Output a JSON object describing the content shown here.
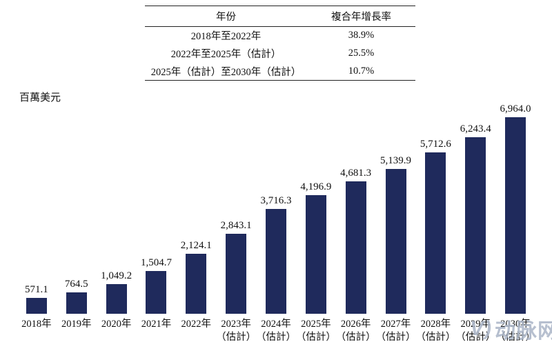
{
  "table": {
    "headers": [
      "年份",
      "複合年增長率"
    ],
    "rows": [
      {
        "period": "2018年至2022年",
        "cagr": "38.9%"
      },
      {
        "period": "2022年至2025年（估計）",
        "cagr": "25.5%"
      },
      {
        "period": "2025年（估計）至2030年（估計）",
        "cagr": "10.7%"
      }
    ]
  },
  "unit_label": "百萬美元",
  "chart_data": {
    "type": "bar",
    "title": "",
    "xlabel": "",
    "ylabel": "百萬美元",
    "ylim": [
      0,
      7000
    ],
    "grid": false,
    "legend": "none",
    "bar_color": "#1F2A5C",
    "categories": [
      "2018年",
      "2019年",
      "2020年",
      "2021年",
      "2022年",
      "2023年\n（估計）",
      "2024年\n（估計）",
      "2025年\n（估計）",
      "2026年\n（估計）",
      "2027年\n（估計）",
      "2028年\n（估計）",
      "2029年\n（估計）",
      "2030年\n（估計）"
    ],
    "values": [
      571.1,
      764.5,
      1049.2,
      1504.7,
      2124.1,
      2843.1,
      3716.3,
      4196.9,
      4681.3,
      5139.9,
      5712.6,
      6243.4,
      6964.0
    ],
    "value_labels": [
      "571.1",
      "764.5",
      "1,049.2",
      "1,504.7",
      "2,124.1",
      "2,843.1",
      "3,716.3",
      "4,196.9",
      "4,681.3",
      "5,139.9",
      "5,712.6",
      "6,243.4",
      "6,964.0"
    ]
  },
  "watermark": {
    "logo": "V)",
    "text": "动脉网"
  }
}
